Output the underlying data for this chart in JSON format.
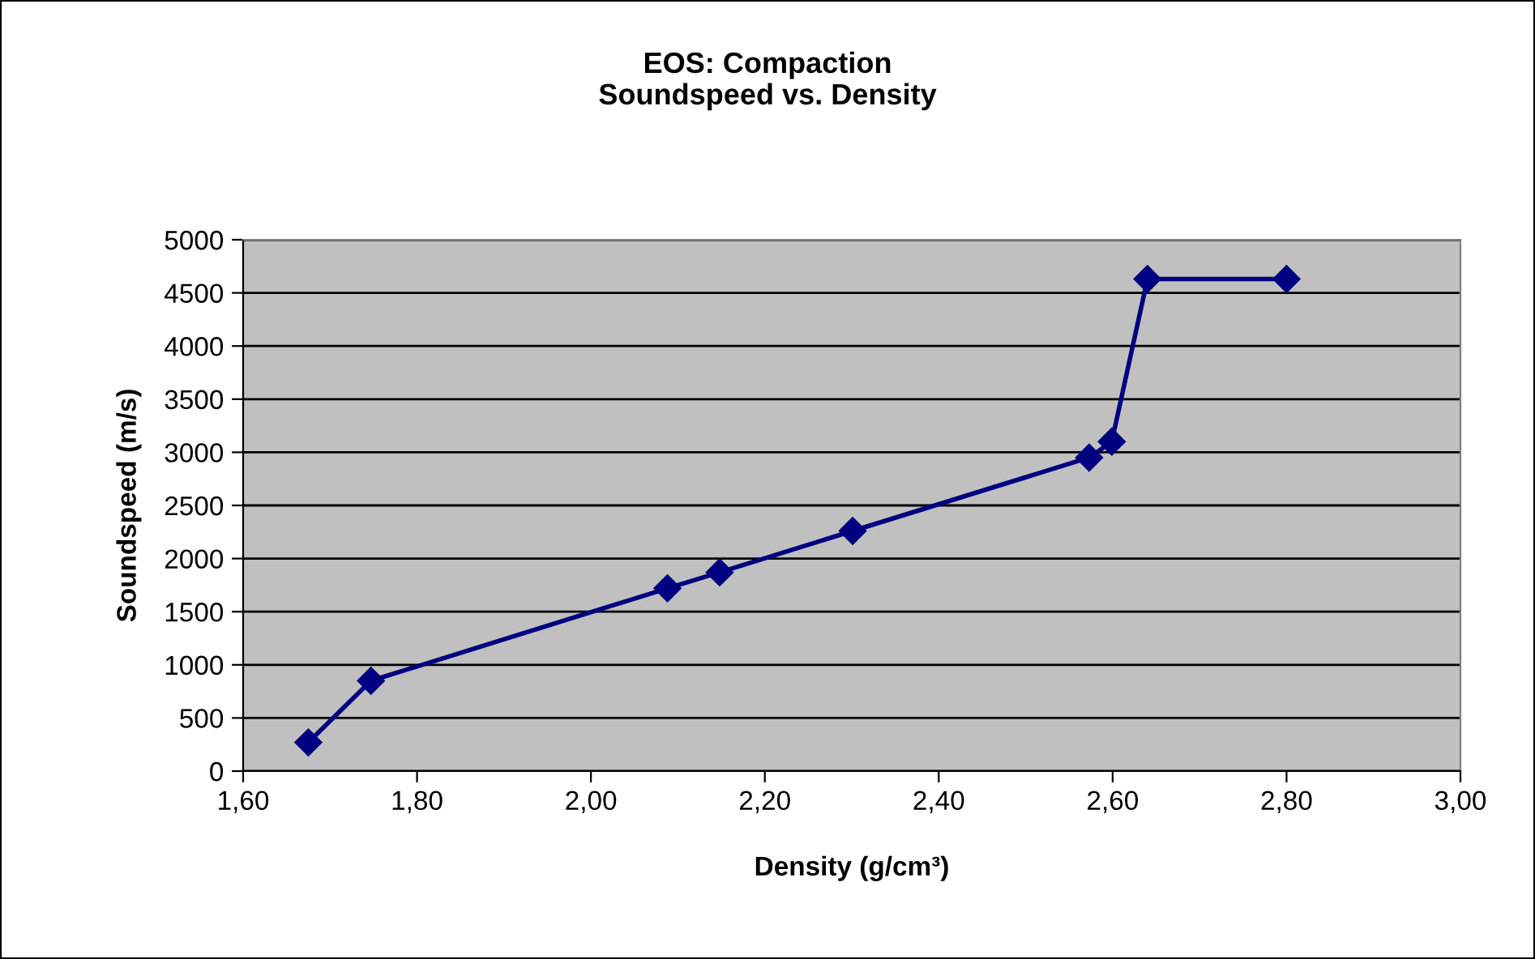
{
  "chart_data": {
    "type": "line",
    "title": "EOS: Compaction\nSoundspeed vs. Density",
    "xlabel": "Density (g/cm³)",
    "ylabel": "Soundspeed (m/s)",
    "series": [
      {
        "color": "#000080",
        "x": [
          1.675,
          1.747,
          2.088,
          2.148,
          2.301,
          2.573,
          2.599,
          2.64,
          2.8
        ],
        "values": [
          270,
          850,
          1720,
          1870,
          2260,
          2950,
          3100,
          4630,
          4630
        ]
      }
    ],
    "xlim": [
      1.6,
      3.0
    ],
    "xticks": [
      {
        "value": 1.6,
        "label": "1,60"
      },
      {
        "value": 1.8,
        "label": "1,80"
      },
      {
        "value": 2.0,
        "label": "2,00"
      },
      {
        "value": 2.2,
        "label": "2,20"
      },
      {
        "value": 2.4,
        "label": "2,40"
      },
      {
        "value": 2.6,
        "label": "2,60"
      },
      {
        "value": 2.8,
        "label": "2,80"
      },
      {
        "value": 3.0,
        "label": "3,00"
      }
    ],
    "ylim": [
      0,
      5000
    ],
    "yticks": [
      0,
      500,
      1000,
      1500,
      2000,
      2500,
      3000,
      3500,
      4000,
      4500,
      5000
    ],
    "grid": "y",
    "marker": "diamond",
    "line_style": "solid"
  }
}
